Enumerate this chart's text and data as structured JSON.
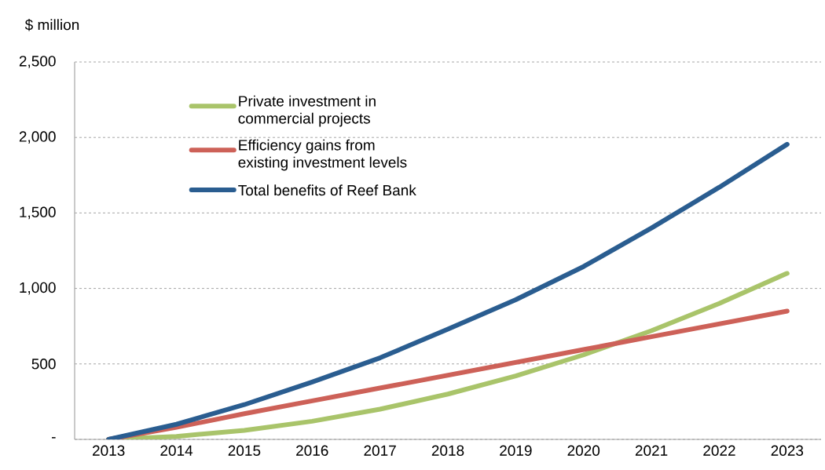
{
  "chart_data": {
    "type": "line",
    "ylabel": "$ million",
    "categories": [
      "2013",
      "2014",
      "2015",
      "2016",
      "2017",
      "2018",
      "2019",
      "2020",
      "2021",
      "2022",
      "2023"
    ],
    "series": [
      {
        "name": "Private investment in commercial projects",
        "color": "#a9c46a",
        "values": [
          0,
          20,
          60,
          120,
          200,
          300,
          420,
          560,
          720,
          900,
          1100
        ]
      },
      {
        "name": "Efficiency gains from existing investment levels",
        "color": "#cd6158",
        "values": [
          0,
          80,
          170,
          255,
          340,
          425,
          510,
          595,
          680,
          765,
          850
        ]
      },
      {
        "name": "Total benefits of Reef Bank",
        "color": "#2a5d90",
        "values": [
          0,
          100,
          230,
          380,
          540,
          730,
          925,
          1145,
          1400,
          1670,
          1955
        ]
      }
    ],
    "ylim": [
      0,
      2500
    ],
    "yticks": [
      {
        "value": 0,
        "label": "-"
      },
      {
        "value": 500,
        "label": "500"
      },
      {
        "value": 1000,
        "label": "1,000"
      },
      {
        "value": 1500,
        "label": "1,500"
      },
      {
        "value": 2000,
        "label": "2,000"
      },
      {
        "value": 2500,
        "label": "2,500"
      }
    ],
    "grid": "y",
    "legend": "top left",
    "marker": "none",
    "line_style": "solid"
  }
}
